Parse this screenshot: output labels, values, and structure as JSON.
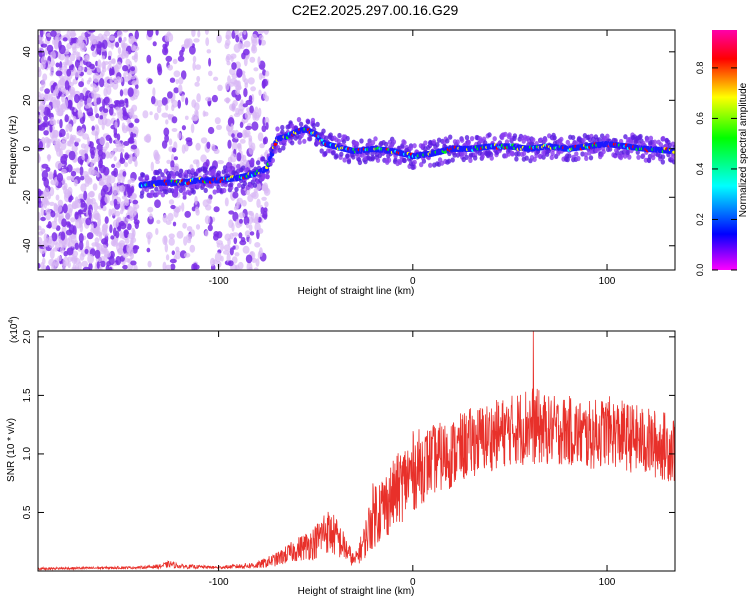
{
  "title": "C2E2.2025.297.00.16.G29",
  "colors": {
    "snr_line": "#e8302a",
    "axis": "#000000",
    "background": "#ffffff"
  },
  "chart_data": [
    {
      "type": "heatmap",
      "name": "spectrogram",
      "xlabel": "Height of straight line (km)",
      "ylabel": "Frequency (Hz)",
      "xlim": [
        -193,
        135
      ],
      "ylim": [
        -50,
        49
      ],
      "x_ticks": [
        -100,
        0,
        100
      ],
      "y_ticks": [
        -40,
        -20,
        0,
        20,
        40
      ],
      "colorbar": {
        "label": "Normalized spectral amplitude",
        "range": [
          0.0,
          0.95
        ],
        "ticks": [
          0.0,
          0.2,
          0.4,
          0.6,
          0.8
        ],
        "colormap": [
          "#ff00ff",
          "#0000ff",
          "#00ffff",
          "#00ff00",
          "#ffff00",
          "#ff0000",
          "#ff00aa"
        ]
      },
      "signal_track": {
        "x": [
          -140,
          -130,
          -120,
          -110,
          -100,
          -90,
          -80,
          -75,
          -70,
          -65,
          -60,
          -55,
          -50,
          -45,
          -40,
          -35,
          -30,
          -20,
          -10,
          0,
          10,
          20,
          30,
          40,
          50,
          60,
          70,
          80,
          90,
          100,
          110,
          120,
          135
        ],
        "frequency": [
          -15,
          -14,
          -14,
          -13,
          -13,
          -12,
          -10,
          -8,
          4,
          5,
          7,
          8,
          6,
          2,
          1,
          0,
          -1,
          0,
          -1,
          -3,
          -2,
          0,
          0,
          1,
          1,
          0,
          1,
          0,
          1,
          2,
          1,
          0,
          -1
        ]
      }
    },
    {
      "type": "line",
      "name": "snr",
      "xlabel": "Height of straight line (km)",
      "ylabel": "SNR (10 * v/v)",
      "scale_label": "(x10",
      "scale_exponent": "4",
      "xlim": [
        -193,
        135
      ],
      "ylim": [
        0,
        2.05
      ],
      "x_ticks": [
        -100,
        0,
        100
      ],
      "y_ticks": [
        0.5,
        1.0,
        1.5,
        2.0
      ],
      "y_tick_labels": [
        "0.5",
        "1.0",
        "1.5",
        "2.0"
      ],
      "envelope": {
        "x": [
          -193,
          -140,
          -130,
          -125,
          -120,
          -100,
          -80,
          -70,
          -60,
          -50,
          -45,
          -40,
          -35,
          -30,
          -25,
          -20,
          -15,
          -10,
          0,
          10,
          20,
          30,
          40,
          50,
          60,
          70,
          80,
          90,
          100,
          110,
          120,
          135
        ],
        "mean": [
          0.02,
          0.03,
          0.04,
          0.06,
          0.04,
          0.03,
          0.05,
          0.1,
          0.18,
          0.25,
          0.35,
          0.3,
          0.2,
          0.08,
          0.25,
          0.5,
          0.55,
          0.65,
          0.85,
          0.95,
          1.0,
          1.1,
          1.15,
          1.2,
          1.25,
          1.2,
          1.2,
          1.15,
          1.2,
          1.15,
          1.1,
          1.05
        ],
        "spread": [
          0.01,
          0.01,
          0.02,
          0.03,
          0.02,
          0.01,
          0.03,
          0.06,
          0.1,
          0.15,
          0.2,
          0.18,
          0.12,
          0.05,
          0.15,
          0.3,
          0.3,
          0.3,
          0.35,
          0.3,
          0.3,
          0.3,
          0.3,
          0.3,
          0.35,
          0.3,
          0.3,
          0.3,
          0.3,
          0.3,
          0.3,
          0.3
        ]
      },
      "peak": {
        "x": 62,
        "y": 2.05
      }
    }
  ]
}
